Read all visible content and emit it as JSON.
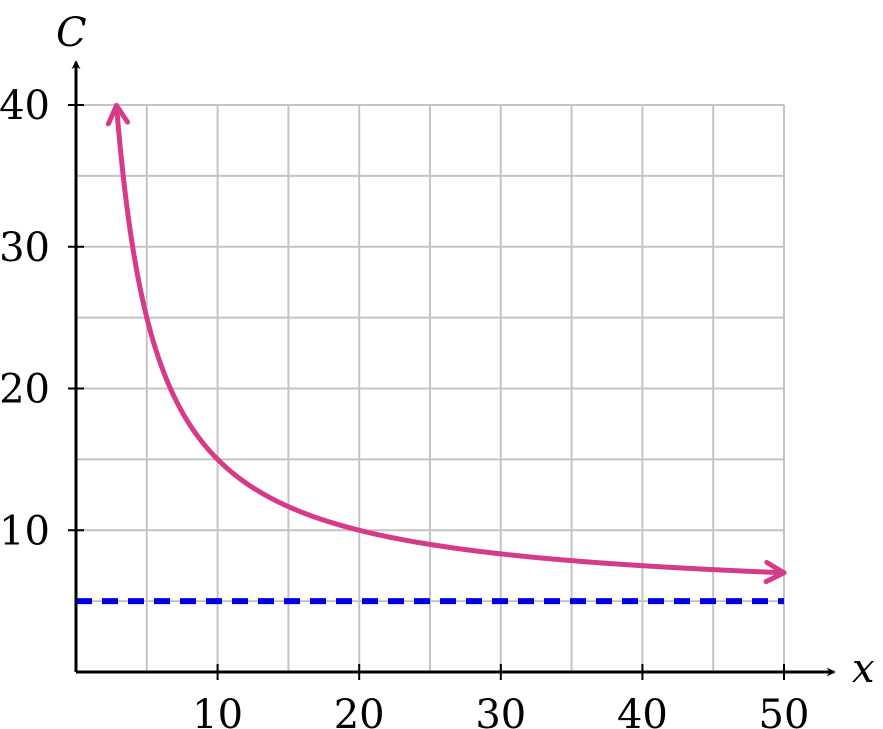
{
  "chart_data": {
    "type": "line",
    "xlabel": "x",
    "ylabel": "C",
    "xlim": [
      0,
      50
    ],
    "ylim": [
      0,
      40
    ],
    "x_ticks": [
      10,
      20,
      30,
      40,
      50
    ],
    "y_ticks": [
      10,
      20,
      30,
      40
    ],
    "x_tick_labels": [
      "10",
      "20",
      "30",
      "40",
      "50"
    ],
    "y_tick_labels": [
      "10",
      "20",
      "30",
      "40"
    ],
    "grid": true,
    "grid_step_x": 5,
    "grid_step_y": 5,
    "series": [
      {
        "formula": "C = 5 + 100/x",
        "x_range": [
          2.86,
          50
        ],
        "arrows_at_ends": true,
        "color": "#d63b8a",
        "style": "solid"
      },
      {
        "formula": "C = 5",
        "x_range": [
          0,
          50
        ],
        "color": "#0000e6",
        "style": "dashed"
      }
    ],
    "colors": {
      "curve": "#d63b8a",
      "asymptote": "#0000e6",
      "grid": "#c4c4c4",
      "axes": "#000000"
    }
  }
}
